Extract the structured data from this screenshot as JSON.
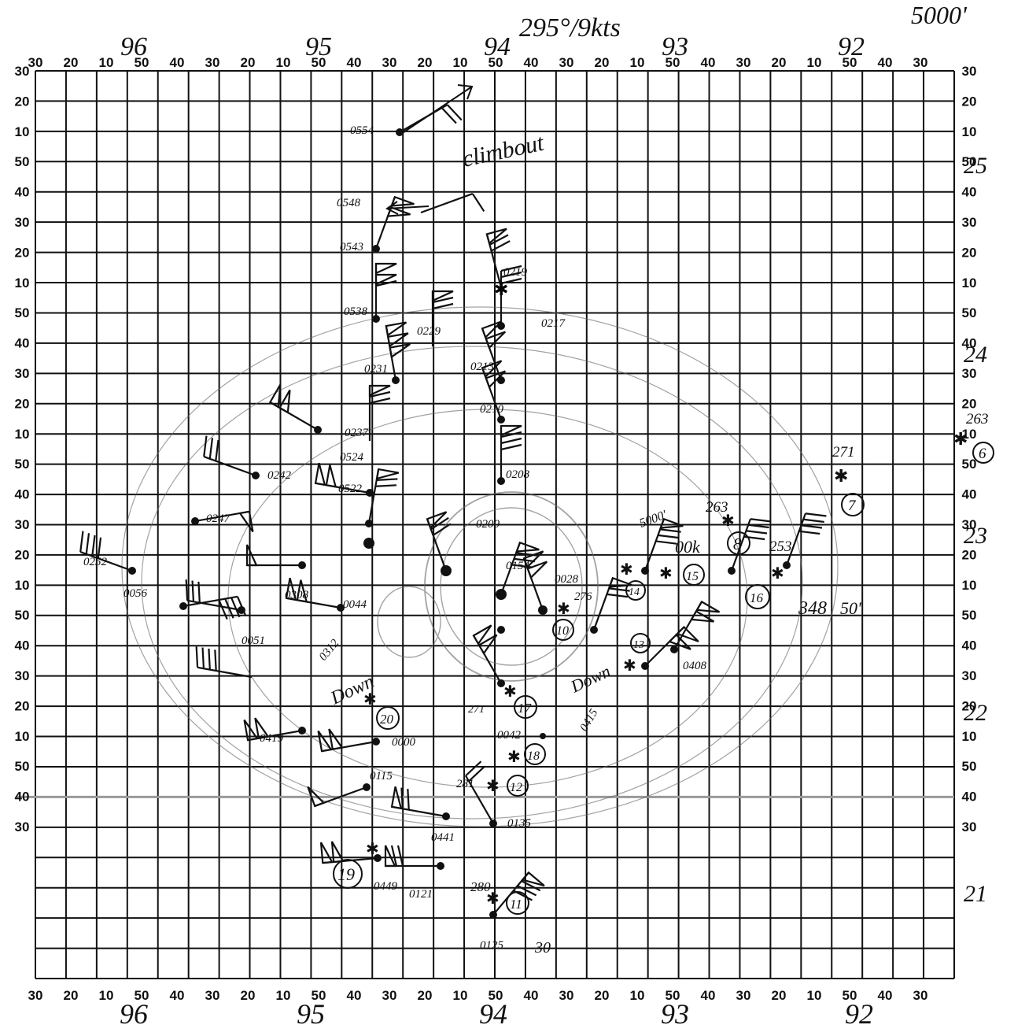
{
  "header": {
    "wind": "295°/9kts",
    "altitude": "5000'"
  },
  "axes": {
    "lon_tick_labels": [
      "30",
      "20",
      "10",
      "50",
      "40",
      "30",
      "20",
      "10",
      "50",
      "40",
      "30",
      "20",
      "10",
      "50",
      "40",
      "30",
      "20",
      "10",
      "50",
      "40",
      "30",
      "20",
      "10",
      "50",
      "40",
      "30"
    ],
    "lon_degree_top": [
      "96",
      "95",
      "94",
      "93",
      "92"
    ],
    "lon_degree_bottom": [
      "96",
      "95",
      "94",
      "93",
      "92"
    ],
    "lat_tick_labels": [
      "30",
      "20",
      "10",
      "50",
      "40",
      "30",
      "20",
      "10",
      "50",
      "40",
      "30",
      "20",
      "10",
      "50",
      "40",
      "30",
      "20",
      "10",
      "50",
      "40",
      "30",
      "20",
      "10",
      "50",
      "40",
      "30"
    ],
    "lat_degree": [
      "25",
      "24",
      "23",
      "22",
      "21"
    ]
  },
  "annotations": {
    "climbout": "climbout",
    "down": "Down",
    "down_2": "Down",
    "label_348": "348",
    "label_50": "50'",
    "label_5000": "5000'",
    "label_00k": "00k",
    "label_30": "30"
  },
  "observations": [
    {
      "time": "0554"
    },
    {
      "time": "0548"
    },
    {
      "time": "0543"
    },
    {
      "time": "0538"
    },
    {
      "time": "0219"
    },
    {
      "time": "0217"
    },
    {
      "time": "0229"
    },
    {
      "time": "0231"
    },
    {
      "time": "0213"
    },
    {
      "time": "0210"
    },
    {
      "time": "0237"
    },
    {
      "time": "0524"
    },
    {
      "time": "0242"
    },
    {
      "time": "0522"
    },
    {
      "time": "0208"
    },
    {
      "time": "0247"
    },
    {
      "time": "0252"
    },
    {
      "time": "0056"
    },
    {
      "time": "0308"
    },
    {
      "time": "0044"
    },
    {
      "time": "0200"
    },
    {
      "time": "0154"
    },
    {
      "time": "0028"
    },
    {
      "time": "0051"
    },
    {
      "time": "0312"
    },
    {
      "time": "0408"
    },
    {
      "time": "0419"
    },
    {
      "time": "0000"
    },
    {
      "time": "0115"
    },
    {
      "time": "0135"
    },
    {
      "time": "0441"
    },
    {
      "time": "0449"
    },
    {
      "time": "0121"
    },
    {
      "time": "0125"
    },
    {
      "time": "0042"
    },
    {
      "time": "0415"
    }
  ],
  "dropsondes": [
    {
      "number": "6",
      "pressure": "263"
    },
    {
      "number": "7",
      "pressure": "271"
    },
    {
      "number": "8",
      "pressure": "263"
    },
    {
      "number": "15",
      "pressure": ""
    },
    {
      "number": "16",
      "pressure": "253"
    },
    {
      "number": "14",
      "pressure": ""
    },
    {
      "number": "10",
      "pressure": "276"
    },
    {
      "number": "13",
      "pressure": ""
    },
    {
      "number": "20",
      "pressure": ""
    },
    {
      "number": "17",
      "pressure": "271"
    },
    {
      "number": "18",
      "pressure": ""
    },
    {
      "number": "12",
      "pressure": "281"
    },
    {
      "number": "19",
      "pressure": ""
    },
    {
      "number": "11",
      "pressure": "280"
    }
  ]
}
